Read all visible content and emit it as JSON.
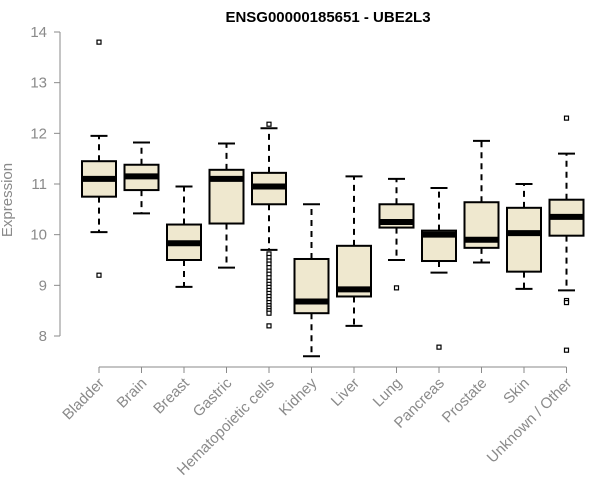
{
  "chart_data": {
    "type": "boxplot",
    "title": "ENSG00000185651 - UBE2L3",
    "ylabel": "Expression",
    "xlabel": "",
    "ylim": [
      7.5,
      14.4
    ],
    "yticks": [
      8,
      9,
      10,
      11,
      12,
      13,
      14
    ],
    "box_color": "#efe8cf",
    "categories": [
      "Bladder",
      "Brain",
      "Breast",
      "Gastric",
      "Hematopoietic cells",
      "Kidney",
      "Liver",
      "Lung",
      "Pancreas",
      "Prostate",
      "Skin",
      "Unknown / Other"
    ],
    "series": [
      {
        "name": "Bladder",
        "whisker_low": 10.05,
        "q1": 10.75,
        "median": 11.1,
        "q3": 11.45,
        "whisker_high": 11.95,
        "outliers": [
          13.8,
          9.2
        ]
      },
      {
        "name": "Brain",
        "whisker_low": 10.42,
        "q1": 10.88,
        "median": 11.15,
        "q3": 11.38,
        "whisker_high": 11.82,
        "outliers": []
      },
      {
        "name": "Breast",
        "whisker_low": 8.97,
        "q1": 9.5,
        "median": 9.83,
        "q3": 10.2,
        "whisker_high": 10.95,
        "outliers": []
      },
      {
        "name": "Gastric",
        "whisker_low": 9.35,
        "q1": 10.22,
        "median": 11.1,
        "q3": 11.28,
        "whisker_high": 11.8,
        "outliers": []
      },
      {
        "name": "Hematopoietic cells",
        "whisker_low": 9.7,
        "q1": 10.6,
        "median": 10.95,
        "q3": 11.22,
        "whisker_high": 12.1,
        "outliers": [
          12.18,
          9.62,
          9.55,
          9.48,
          9.42,
          9.35,
          9.28,
          9.22,
          9.15,
          9.08,
          9.02,
          8.96,
          8.9,
          8.84,
          8.78,
          8.72,
          8.66,
          8.6,
          8.55,
          8.5,
          8.45,
          8.2
        ]
      },
      {
        "name": "Kidney",
        "whisker_low": 7.6,
        "q1": 8.45,
        "median": 8.68,
        "q3": 9.52,
        "whisker_high": 10.6,
        "outliers": []
      },
      {
        "name": "Liver",
        "whisker_low": 8.2,
        "q1": 8.78,
        "median": 8.92,
        "q3": 9.78,
        "whisker_high": 11.15,
        "outliers": []
      },
      {
        "name": "Lung",
        "whisker_low": 9.5,
        "q1": 10.14,
        "median": 10.25,
        "q3": 10.6,
        "whisker_high": 11.1,
        "outliers": [
          8.95
        ]
      },
      {
        "name": "Pancreas",
        "whisker_low": 9.25,
        "q1": 9.48,
        "median": 10.0,
        "q3": 10.08,
        "whisker_high": 10.92,
        "outliers": [
          7.78
        ]
      },
      {
        "name": "Prostate",
        "whisker_low": 9.45,
        "q1": 9.74,
        "median": 9.9,
        "q3": 10.64,
        "whisker_high": 11.85,
        "outliers": []
      },
      {
        "name": "Skin",
        "whisker_low": 8.93,
        "q1": 9.27,
        "median": 10.03,
        "q3": 10.53,
        "whisker_high": 11.0,
        "outliers": []
      },
      {
        "name": "Unknown / Other",
        "whisker_low": 8.9,
        "q1": 9.98,
        "median": 10.35,
        "q3": 10.69,
        "whisker_high": 11.6,
        "outliers": [
          12.3,
          8.7,
          8.66,
          7.72
        ]
      }
    ]
  }
}
